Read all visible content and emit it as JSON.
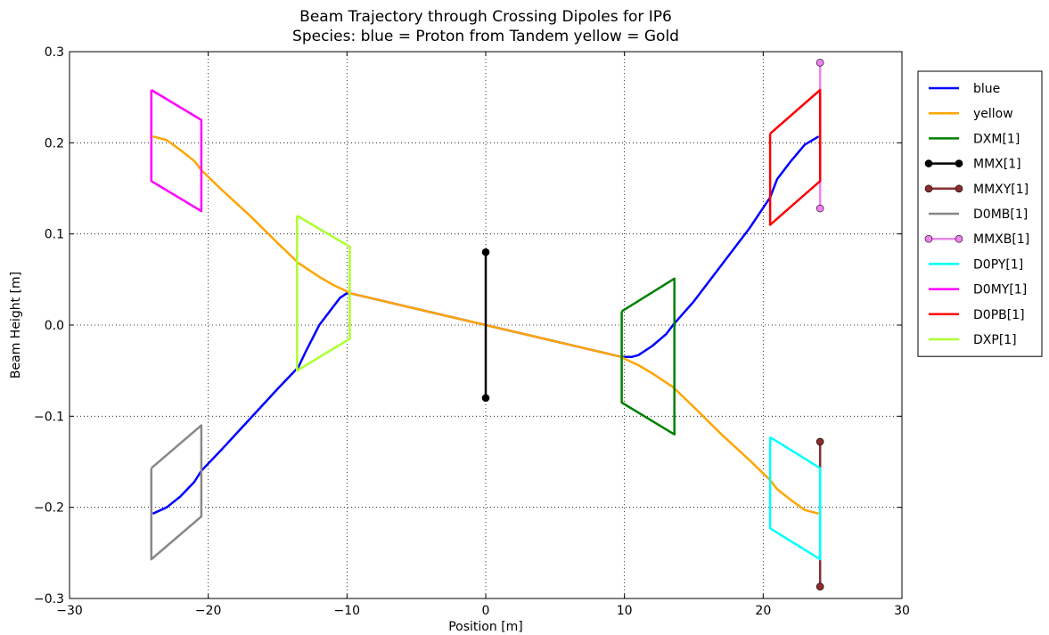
{
  "chart_data": {
    "type": "line",
    "title_lines": [
      "Beam Trajectory through Crossing Dipoles for IP6",
      "Species:    blue = Proton from Tandem    yellow = Gold"
    ],
    "xlabel": "Position [m]",
    "ylabel": "Beam Height [m]",
    "xlim": [
      -30,
      30
    ],
    "ylim": [
      -0.3,
      0.3
    ],
    "x_ticks": [
      -30,
      -20,
      -10,
      0,
      10,
      20,
      30
    ],
    "x_tick_labels": [
      "−30",
      "−20",
      "−10",
      "0",
      "10",
      "20",
      "30"
    ],
    "y_ticks": [
      -0.3,
      -0.2,
      -0.1,
      0.0,
      0.1,
      0.2,
      0.3
    ],
    "y_tick_labels": [
      "−0.3",
      "−0.2",
      "−0.1",
      "0.0",
      "0.1",
      "0.2",
      "0.3"
    ],
    "grid": true,
    "legend_position": "outside-right",
    "series": [
      {
        "name": "blue",
        "color": "#0000ff",
        "marker": false,
        "points": [
          [
            -24.0,
            -0.207
          ],
          [
            -23.0,
            -0.2
          ],
          [
            -22.0,
            -0.188
          ],
          [
            -21.0,
            -0.172
          ],
          [
            -20.5,
            -0.16
          ],
          [
            -19.0,
            -0.136
          ],
          [
            -17.0,
            -0.103
          ],
          [
            -15.0,
            -0.07
          ],
          [
            -13.5,
            -0.046
          ],
          [
            -13.0,
            -0.03
          ],
          [
            -12.5,
            -0.015
          ],
          [
            -12.0,
            0.0
          ],
          [
            -11.0,
            0.02
          ],
          [
            -10.5,
            0.03
          ],
          [
            -10.0,
            0.035
          ],
          [
            -9.8,
            0.035
          ],
          [
            0.0,
            0.0
          ],
          [
            9.8,
            -0.035
          ],
          [
            10.0,
            -0.035
          ],
          [
            10.5,
            -0.035
          ],
          [
            11.0,
            -0.033
          ],
          [
            12.0,
            -0.023
          ],
          [
            13.0,
            -0.01
          ],
          [
            13.5,
            0.0
          ],
          [
            15.0,
            0.026
          ],
          [
            17.0,
            0.066
          ],
          [
            19.0,
            0.106
          ],
          [
            20.5,
            0.14
          ],
          [
            21.0,
            0.16
          ],
          [
            22.0,
            0.18
          ],
          [
            23.0,
            0.198
          ],
          [
            24.0,
            0.207
          ]
        ]
      },
      {
        "name": "yellow",
        "color": "#ffa500",
        "marker": false,
        "points": [
          [
            -24.0,
            0.207
          ],
          [
            -23.0,
            0.203
          ],
          [
            -22.0,
            0.192
          ],
          [
            -21.0,
            0.18
          ],
          [
            -20.5,
            0.17
          ],
          [
            -19.0,
            0.148
          ],
          [
            -17.0,
            0.12
          ],
          [
            -15.0,
            0.09
          ],
          [
            -13.5,
            0.068
          ],
          [
            -12.0,
            0.053
          ],
          [
            -11.0,
            0.044
          ],
          [
            -10.0,
            0.037
          ],
          [
            -9.8,
            0.035
          ],
          [
            0.0,
            0.0
          ],
          [
            9.8,
            -0.035
          ],
          [
            10.0,
            -0.037
          ],
          [
            11.0,
            -0.044
          ],
          [
            12.0,
            -0.053
          ],
          [
            13.5,
            -0.068
          ],
          [
            15.0,
            -0.09
          ],
          [
            17.0,
            -0.12
          ],
          [
            19.0,
            -0.148
          ],
          [
            20.5,
            -0.17
          ],
          [
            21.0,
            -0.18
          ],
          [
            22.0,
            -0.192
          ],
          [
            23.0,
            -0.203
          ],
          [
            24.0,
            -0.207
          ]
        ]
      },
      {
        "name": "DXM[1]",
        "color": "#008000",
        "marker": false,
        "points": [
          [
            9.8,
            0.015
          ],
          [
            13.6,
            0.051
          ],
          [
            13.6,
            -0.12
          ],
          [
            9.8,
            -0.085
          ],
          [
            9.8,
            0.015
          ]
        ]
      },
      {
        "name": "MMX[1]",
        "color": "#000000",
        "marker": true,
        "points": [
          [
            0.0,
            0.08
          ],
          [
            0.0,
            -0.08
          ]
        ]
      },
      {
        "name": "MMXY[1]",
        "color": "#8b2e2e",
        "marker": true,
        "points": [
          [
            24.1,
            -0.128
          ],
          [
            24.1,
            -0.287
          ]
        ]
      },
      {
        "name": "D0MB[1]",
        "color": "#888888",
        "marker": false,
        "points": [
          [
            -24.1,
            -0.157
          ],
          [
            -20.5,
            -0.11
          ],
          [
            -20.5,
            -0.21
          ],
          [
            -24.1,
            -0.257
          ],
          [
            -24.1,
            -0.157
          ]
        ]
      },
      {
        "name": "MMXB[1]",
        "color": "#ee82ee",
        "marker": true,
        "points": [
          [
            24.1,
            0.288
          ],
          [
            24.1,
            0.128
          ]
        ]
      },
      {
        "name": "D0PY[1]",
        "color": "#00ffff",
        "marker": false,
        "points": [
          [
            20.5,
            -0.123
          ],
          [
            24.1,
            -0.157
          ],
          [
            24.1,
            -0.257
          ],
          [
            20.5,
            -0.223
          ],
          [
            20.5,
            -0.123
          ]
        ]
      },
      {
        "name": "D0MY[1]",
        "color": "#ff00ff",
        "marker": false,
        "points": [
          [
            -24.1,
            0.258
          ],
          [
            -20.5,
            0.225
          ],
          [
            -20.5,
            0.125
          ],
          [
            -24.1,
            0.158
          ],
          [
            -24.1,
            0.258
          ]
        ]
      },
      {
        "name": "D0PB[1]",
        "color": "#ff0000",
        "marker": false,
        "points": [
          [
            20.5,
            0.21
          ],
          [
            24.1,
            0.258
          ],
          [
            24.1,
            0.158
          ],
          [
            20.5,
            0.11
          ],
          [
            20.5,
            0.21
          ]
        ]
      },
      {
        "name": "DXP[1]",
        "color": "#adff2f",
        "marker": false,
        "points": [
          [
            -13.6,
            0.12
          ],
          [
            -9.8,
            0.086
          ],
          [
            -9.8,
            -0.015
          ],
          [
            -13.6,
            -0.05
          ],
          [
            -13.6,
            0.12
          ]
        ]
      }
    ]
  }
}
